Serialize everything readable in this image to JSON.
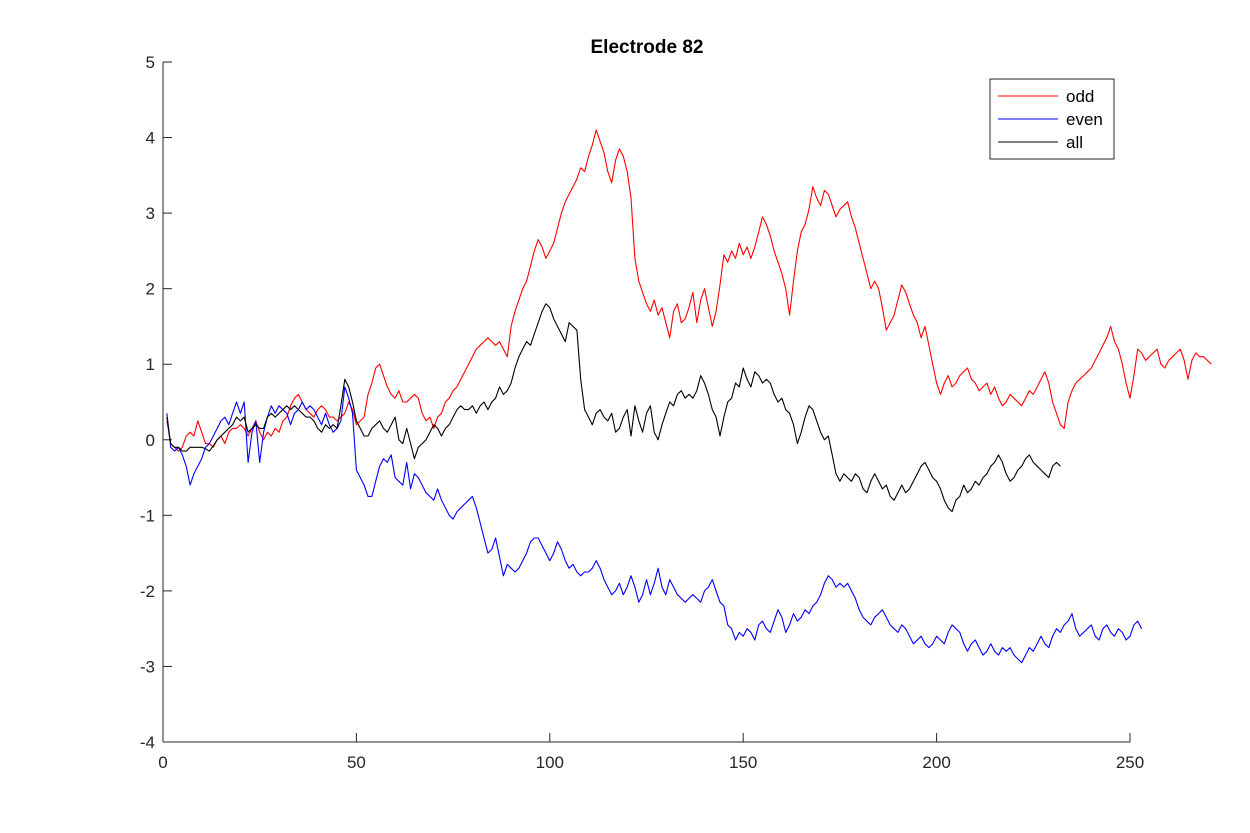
{
  "chart_data": {
    "type": "line",
    "title": "Electrode 82",
    "xlabel": "",
    "ylabel": "",
    "xlim": [
      0,
      250
    ],
    "ylim": [
      -4,
      5
    ],
    "xticks": [
      0,
      50,
      100,
      150,
      200,
      250
    ],
    "yticks": [
      -4,
      -3,
      -2,
      -1,
      0,
      1,
      2,
      3,
      4,
      5
    ],
    "grid": false,
    "legend_position": "top-right",
    "x_start": 1,
    "x_step": 1,
    "series": [
      {
        "name": "odd",
        "color": "#ff0000",
        "values": [
          0.25,
          -0.05,
          -0.1,
          -0.15,
          -0.1,
          0.05,
          0.1,
          0.05,
          0.25,
          0.1,
          -0.05,
          -0.05,
          -0.1,
          0.0,
          0.05,
          -0.05,
          0.1,
          0.15,
          0.15,
          0.2,
          0.15,
          0.05,
          0.15,
          0.25,
          0.1,
          0.0,
          0.1,
          0.05,
          0.15,
          0.1,
          0.25,
          0.3,
          0.45,
          0.55,
          0.6,
          0.5,
          0.4,
          0.35,
          0.3,
          0.4,
          0.45,
          0.4,
          0.3,
          0.3,
          0.25,
          0.3,
          0.35,
          0.5,
          0.4,
          0.2,
          0.25,
          0.3,
          0.6,
          0.75,
          0.95,
          1.0,
          0.85,
          0.7,
          0.6,
          0.55,
          0.65,
          0.5,
          0.5,
          0.55,
          0.6,
          0.55,
          0.35,
          0.25,
          0.3,
          0.15,
          0.3,
          0.35,
          0.5,
          0.55,
          0.65,
          0.7,
          0.8,
          0.9,
          1.0,
          1.1,
          1.2,
          1.25,
          1.3,
          1.35,
          1.3,
          1.25,
          1.3,
          1.2,
          1.1,
          1.5,
          1.7,
          1.85,
          2.0,
          2.1,
          2.3,
          2.5,
          2.65,
          2.55,
          2.4,
          2.5,
          2.6,
          2.8,
          3.0,
          3.15,
          3.25,
          3.35,
          3.45,
          3.6,
          3.55,
          3.75,
          3.9,
          4.1,
          3.95,
          3.8,
          3.55,
          3.4,
          3.7,
          3.85,
          3.75,
          3.55,
          3.2,
          2.4,
          2.1,
          1.95,
          1.8,
          1.7,
          1.85,
          1.65,
          1.75,
          1.55,
          1.35,
          1.7,
          1.8,
          1.55,
          1.6,
          1.75,
          1.95,
          1.55,
          1.85,
          2.0,
          1.75,
          1.5,
          1.7,
          2.05,
          2.45,
          2.35,
          2.5,
          2.4,
          2.6,
          2.45,
          2.55,
          2.4,
          2.55,
          2.75,
          2.95,
          2.85,
          2.7,
          2.5,
          2.35,
          2.2,
          2.0,
          1.65,
          2.1,
          2.5,
          2.75,
          2.85,
          3.05,
          3.35,
          3.2,
          3.1,
          3.3,
          3.25,
          3.1,
          2.95,
          3.05,
          3.1,
          3.15,
          2.95,
          2.8,
          2.6,
          2.4,
          2.2,
          2.0,
          2.1,
          2.0,
          1.75,
          1.45,
          1.55,
          1.65,
          1.85,
          2.05,
          1.95,
          1.8,
          1.65,
          1.55,
          1.35,
          1.5,
          1.25,
          1.0,
          0.75,
          0.6,
          0.75,
          0.85,
          0.7,
          0.75,
          0.85,
          0.9,
          0.95,
          0.8,
          0.75,
          0.65,
          0.7,
          0.75,
          0.6,
          0.7,
          0.55,
          0.45,
          0.5,
          0.6,
          0.55,
          0.5,
          0.45,
          0.55,
          0.65,
          0.6,
          0.7,
          0.8,
          0.9,
          0.75,
          0.5,
          0.35,
          0.2,
          0.15,
          0.5,
          0.65,
          0.75,
          0.8,
          0.85,
          0.9,
          0.95,
          1.05,
          1.15,
          1.25,
          1.35,
          1.5,
          1.3,
          1.2,
          1.0,
          0.75,
          0.55,
          0.85,
          1.2,
          1.15,
          1.05,
          1.1,
          1.15,
          1.2,
          1.0,
          0.95,
          1.05,
          1.1,
          1.15,
          1.2,
          1.05,
          0.8,
          1.05,
          1.15,
          1.1,
          1.1,
          1.05,
          1.0
        ]
      },
      {
        "name": "even",
        "color": "#0000ff",
        "values": [
          0.35,
          -0.1,
          -0.15,
          -0.1,
          -0.2,
          -0.35,
          -0.6,
          -0.45,
          -0.35,
          -0.25,
          -0.1,
          -0.05,
          0.05,
          0.15,
          0.25,
          0.3,
          0.2,
          0.35,
          0.5,
          0.35,
          0.5,
          -0.3,
          0.1,
          0.25,
          -0.3,
          0.1,
          0.3,
          0.45,
          0.35,
          0.45,
          0.4,
          0.35,
          0.2,
          0.35,
          0.4,
          0.5,
          0.4,
          0.45,
          0.4,
          0.3,
          0.2,
          0.35,
          0.2,
          0.1,
          0.15,
          0.25,
          0.7,
          0.55,
          0.35,
          -0.4,
          -0.5,
          -0.6,
          -0.75,
          -0.75,
          -0.55,
          -0.35,
          -0.25,
          -0.3,
          -0.2,
          -0.5,
          -0.55,
          -0.6,
          -0.3,
          -0.65,
          -0.45,
          -0.5,
          -0.6,
          -0.7,
          -0.75,
          -0.8,
          -0.65,
          -0.8,
          -0.9,
          -1.0,
          -1.05,
          -0.95,
          -0.9,
          -0.85,
          -0.8,
          -0.75,
          -0.9,
          -1.1,
          -1.3,
          -1.5,
          -1.45,
          -1.3,
          -1.55,
          -1.8,
          -1.65,
          -1.7,
          -1.75,
          -1.7,
          -1.6,
          -1.5,
          -1.35,
          -1.3,
          -1.3,
          -1.4,
          -1.5,
          -1.6,
          -1.5,
          -1.35,
          -1.45,
          -1.6,
          -1.7,
          -1.65,
          -1.75,
          -1.8,
          -1.75,
          -1.75,
          -1.7,
          -1.6,
          -1.7,
          -1.85,
          -1.95,
          -2.05,
          -2.0,
          -1.9,
          -2.05,
          -1.95,
          -1.8,
          -1.95,
          -2.15,
          -2.05,
          -1.85,
          -2.05,
          -1.9,
          -1.7,
          -1.95,
          -2.05,
          -1.85,
          -1.95,
          -2.05,
          -2.1,
          -2.15,
          -2.1,
          -2.05,
          -2.1,
          -2.15,
          -2.0,
          -1.95,
          -1.85,
          -2.0,
          -2.15,
          -2.2,
          -2.45,
          -2.5,
          -2.65,
          -2.55,
          -2.6,
          -2.5,
          -2.55,
          -2.65,
          -2.45,
          -2.4,
          -2.5,
          -2.55,
          -2.4,
          -2.25,
          -2.35,
          -2.55,
          -2.45,
          -2.3,
          -2.4,
          -2.35,
          -2.25,
          -2.3,
          -2.2,
          -2.15,
          -2.05,
          -1.9,
          -1.8,
          -1.85,
          -1.95,
          -1.9,
          -1.95,
          -1.9,
          -2.0,
          -2.1,
          -2.25,
          -2.35,
          -2.4,
          -2.45,
          -2.35,
          -2.3,
          -2.25,
          -2.35,
          -2.45,
          -2.5,
          -2.55,
          -2.45,
          -2.5,
          -2.6,
          -2.7,
          -2.65,
          -2.6,
          -2.7,
          -2.75,
          -2.7,
          -2.6,
          -2.65,
          -2.7,
          -2.55,
          -2.45,
          -2.5,
          -2.55,
          -2.7,
          -2.8,
          -2.7,
          -2.65,
          -2.75,
          -2.85,
          -2.8,
          -2.7,
          -2.8,
          -2.85,
          -2.75,
          -2.8,
          -2.75,
          -2.85,
          -2.9,
          -2.95,
          -2.85,
          -2.75,
          -2.8,
          -2.7,
          -2.6,
          -2.7,
          -2.75,
          -2.6,
          -2.5,
          -2.55,
          -2.45,
          -2.4,
          -2.3,
          -2.5,
          -2.6,
          -2.55,
          -2.5,
          -2.45,
          -2.6,
          -2.65,
          -2.5,
          -2.45,
          -2.55,
          -2.6,
          -2.5,
          -2.55,
          -2.65,
          -2.6,
          -2.45,
          -2.4,
          -2.5
        ]
      },
      {
        "name": "all",
        "color": "#000000",
        "values": [
          0.3,
          -0.05,
          -0.1,
          -0.1,
          -0.15,
          -0.15,
          -0.1,
          -0.1,
          -0.1,
          -0.1,
          -0.12,
          -0.15,
          -0.08,
          0.0,
          0.05,
          0.1,
          0.15,
          0.2,
          0.3,
          0.25,
          0.3,
          0.1,
          0.15,
          0.2,
          0.15,
          0.15,
          0.3,
          0.35,
          0.3,
          0.35,
          0.4,
          0.45,
          0.4,
          0.45,
          0.4,
          0.35,
          0.3,
          0.3,
          0.25,
          0.15,
          0.1,
          0.2,
          0.15,
          0.2,
          0.15,
          0.45,
          0.8,
          0.7,
          0.5,
          0.25,
          0.15,
          0.05,
          0.05,
          0.15,
          0.2,
          0.25,
          0.15,
          0.1,
          0.2,
          0.3,
          0.0,
          -0.05,
          0.15,
          -0.05,
          -0.25,
          -0.1,
          -0.05,
          0.0,
          0.1,
          0.2,
          0.15,
          0.05,
          0.15,
          0.2,
          0.3,
          0.4,
          0.45,
          0.4,
          0.4,
          0.45,
          0.35,
          0.45,
          0.5,
          0.4,
          0.5,
          0.55,
          0.7,
          0.6,
          0.65,
          0.75,
          0.95,
          1.1,
          1.2,
          1.3,
          1.25,
          1.4,
          1.55,
          1.7,
          1.8,
          1.75,
          1.6,
          1.5,
          1.4,
          1.3,
          1.55,
          1.5,
          1.45,
          0.8,
          0.4,
          0.3,
          0.2,
          0.35,
          0.4,
          0.3,
          0.25,
          0.35,
          0.1,
          0.15,
          0.3,
          0.4,
          0.05,
          0.45,
          0.25,
          0.1,
          0.35,
          0.45,
          0.1,
          0.0,
          0.2,
          0.35,
          0.5,
          0.45,
          0.6,
          0.65,
          0.55,
          0.6,
          0.55,
          0.65,
          0.85,
          0.75,
          0.6,
          0.4,
          0.3,
          0.05,
          0.3,
          0.5,
          0.55,
          0.75,
          0.7,
          0.95,
          0.8,
          0.7,
          0.9,
          0.85,
          0.75,
          0.8,
          0.75,
          0.6,
          0.5,
          0.55,
          0.4,
          0.35,
          0.2,
          -0.05,
          0.1,
          0.3,
          0.45,
          0.4,
          0.25,
          0.1,
          0.0,
          0.05,
          -0.2,
          -0.45,
          -0.55,
          -0.45,
          -0.5,
          -0.55,
          -0.45,
          -0.5,
          -0.65,
          -0.7,
          -0.55,
          -0.45,
          -0.55,
          -0.65,
          -0.6,
          -0.75,
          -0.8,
          -0.7,
          -0.6,
          -0.7,
          -0.65,
          -0.55,
          -0.45,
          -0.35,
          -0.3,
          -0.4,
          -0.5,
          -0.55,
          -0.65,
          -0.8,
          -0.9,
          -0.95,
          -0.8,
          -0.75,
          -0.6,
          -0.7,
          -0.65,
          -0.55,
          -0.6,
          -0.5,
          -0.45,
          -0.35,
          -0.3,
          -0.2,
          -0.3,
          -0.45,
          -0.55,
          -0.5,
          -0.4,
          -0.35,
          -0.25,
          -0.2,
          -0.3,
          -0.35,
          -0.4,
          -0.45,
          -0.5,
          -0.35,
          -0.3,
          -0.35
        ]
      }
    ]
  }
}
